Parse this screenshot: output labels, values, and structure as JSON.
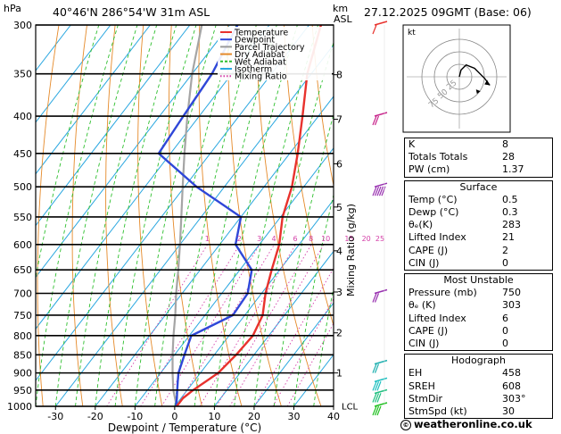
{
  "header": {
    "location": "40°46'N  286°54'W  31m  ASL",
    "datetime": "27.12.2025  09GMT  (Base: 06)",
    "unit_left": "hPa",
    "unit_km": "km",
    "unit_asl": "ASL"
  },
  "chart_data": {
    "type": "skew-t",
    "xlabel": "Dewpoint / Temperature (°C)",
    "ylabel_right": "Mixing Ratio (g/kg)",
    "pressure_levels": [
      300,
      350,
      400,
      450,
      500,
      550,
      600,
      650,
      700,
      750,
      800,
      850,
      900,
      950,
      1000
    ],
    "temperature_ticks": [
      -30,
      -20,
      -10,
      0,
      10,
      20,
      30,
      40
    ],
    "temperature_range": [
      -35,
      40
    ],
    "km_ticks": [
      {
        "km": "1",
        "p": 900
      },
      {
        "km": "2",
        "p": 793
      },
      {
        "km": "3",
        "p": 697
      },
      {
        "km": "4",
        "p": 612
      },
      {
        "km": "5",
        "p": 533
      },
      {
        "km": "6",
        "p": 465
      },
      {
        "km": "7",
        "p": 404
      },
      {
        "km": "8",
        "p": 351
      }
    ],
    "lcl_label": "LCL",
    "lcl_p": 998,
    "mixing_ratio_labels": [
      "1",
      "2",
      "3",
      "4",
      "6",
      "8",
      "10",
      "15",
      "20",
      "25"
    ],
    "mixing_ratio_values": [
      1,
      2,
      3,
      4,
      6,
      8,
      10,
      15,
      20,
      25
    ],
    "legend": [
      {
        "name": "Temperature",
        "color": "#e8322d"
      },
      {
        "name": "Dewpoint",
        "color": "#2f47d8"
      },
      {
        "name": "Parcel Trajectory",
        "color": "#9a9a9a"
      },
      {
        "name": "Dry Adiabat",
        "color": "#e58a2a"
      },
      {
        "name": "Wet Adiabat",
        "color": "#2ebf2e"
      },
      {
        "name": "Isotherm",
        "color": "#2aa7e0"
      },
      {
        "name": "Mixing Ratio",
        "color": "#d43fa8"
      }
    ],
    "temperature_profile": [
      {
        "p": 1000,
        "t": 0.5
      },
      {
        "p": 975,
        "t": 0.5
      },
      {
        "p": 950,
        "t": 1.5
      },
      {
        "p": 925,
        "t": 3.0
      },
      {
        "p": 900,
        "t": 4.5
      },
      {
        "p": 850,
        "t": 5.5
      },
      {
        "p": 800,
        "t": 6.0
      },
      {
        "p": 750,
        "t": 4.5
      },
      {
        "p": 700,
        "t": 1.0
      },
      {
        "p": 650,
        "t": -2.0
      },
      {
        "p": 600,
        "t": -5.0
      },
      {
        "p": 550,
        "t": -9.5
      },
      {
        "p": 500,
        "t": -13.0
      },
      {
        "p": 450,
        "t": -18.0
      },
      {
        "p": 400,
        "t": -24.0
      },
      {
        "p": 350,
        "t": -31.0
      },
      {
        "p": 300,
        "t": -37.0
      }
    ],
    "dewpoint_profile": [
      {
        "p": 1000,
        "t": 0.3
      },
      {
        "p": 975,
        "t": -1.0
      },
      {
        "p": 950,
        "t": -2.5
      },
      {
        "p": 925,
        "t": -4.0
      },
      {
        "p": 900,
        "t": -5.5
      },
      {
        "p": 850,
        "t": -7.5
      },
      {
        "p": 800,
        "t": -9.5
      },
      {
        "p": 750,
        "t": -3.0
      },
      {
        "p": 700,
        "t": -3.5
      },
      {
        "p": 650,
        "t": -7.0
      },
      {
        "p": 600,
        "t": -16.0
      },
      {
        "p": 550,
        "t": -20.0
      },
      {
        "p": 500,
        "t": -37.0
      },
      {
        "p": 450,
        "t": -53.0
      },
      {
        "p": 400,
        "t": -54.0
      },
      {
        "p": 350,
        "t": -55.0
      },
      {
        "p": 300,
        "t": -58.0
      }
    ],
    "parcel_profile": [
      {
        "p": 1000,
        "t": 0.5
      },
      {
        "p": 950,
        "t": -3.5
      },
      {
        "p": 900,
        "t": -7.0
      },
      {
        "p": 850,
        "t": -10.5
      },
      {
        "p": 800,
        "t": -14.0
      },
      {
        "p": 750,
        "t": -17.5
      },
      {
        "p": 700,
        "t": -21.5
      },
      {
        "p": 650,
        "t": -25.5
      },
      {
        "p": 600,
        "t": -30.0
      },
      {
        "p": 550,
        "t": -35.0
      },
      {
        "p": 500,
        "t": -40.5
      },
      {
        "p": 450,
        "t": -46.5
      },
      {
        "p": 400,
        "t": -53.0
      },
      {
        "p": 350,
        "t": -60.0
      },
      {
        "p": 300,
        "t": -67.0
      }
    ],
    "wind_barbs": [
      {
        "p": 300,
        "color": "#e8322d",
        "dir": 300,
        "kt": 10
      },
      {
        "p": 400,
        "color": "#c8268c",
        "dir": 280,
        "kt": 20
      },
      {
        "p": 500,
        "color": "#9830b0",
        "dir": 280,
        "kt": 45
      },
      {
        "p": 700,
        "color": "#9830b0",
        "dir": 280,
        "kt": 20
      },
      {
        "p": 875,
        "color": "#20b0b0",
        "dir": 300,
        "kt": 15
      },
      {
        "p": 925,
        "color": "#20c0c0",
        "dir": 310,
        "kt": 25
      },
      {
        "p": 960,
        "color": "#20c080",
        "dir": 310,
        "kt": 30
      },
      {
        "p": 1000,
        "color": "#20c020",
        "dir": 320,
        "kt": 30
      }
    ],
    "hodograph": {
      "label": "kt",
      "ring_labels": [
        "25",
        "50",
        "75"
      ],
      "trace": [
        [
          0,
          0
        ],
        [
          2,
          8
        ],
        [
          8,
          14
        ],
        [
          18,
          10
        ],
        [
          30,
          -2
        ],
        [
          36,
          -10
        ]
      ],
      "storm_motion": [
        25,
        -17
      ]
    }
  },
  "indices": {
    "rows": [
      {
        "label": "K",
        "value": "8"
      },
      {
        "label": "Totals Totals",
        "value": "28"
      },
      {
        "label": "PW (cm)",
        "value": "1.37"
      }
    ]
  },
  "surface": {
    "title": "Surface",
    "rows": [
      {
        "label": "Temp (°C)",
        "value": "0.5"
      },
      {
        "label": "Dewp (°C)",
        "value": "0.3"
      },
      {
        "label": "θₑ(K)",
        "value": "283"
      },
      {
        "label": "Lifted Index",
        "value": "21"
      },
      {
        "label": "CAPE (J)",
        "value": "2"
      },
      {
        "label": "CIN (J)",
        "value": "0"
      }
    ]
  },
  "most_unstable": {
    "title": "Most Unstable",
    "rows": [
      {
        "label": "Pressure (mb)",
        "value": "750"
      },
      {
        "label": "θₑ (K)",
        "value": "303"
      },
      {
        "label": "Lifted Index",
        "value": "6"
      },
      {
        "label": "CAPE (J)",
        "value": "0"
      },
      {
        "label": "CIN (J)",
        "value": "0"
      }
    ]
  },
  "hodograph_table": {
    "title": "Hodograph",
    "rows": [
      {
        "label": "EH",
        "value": "458"
      },
      {
        "label": "SREH",
        "value": "608"
      },
      {
        "label": "StmDir",
        "value": "303°"
      },
      {
        "label": "StmSpd (kt)",
        "value": "30"
      }
    ]
  },
  "copyright": {
    "symbol": "©",
    "text": "weatheronline.co.uk"
  }
}
